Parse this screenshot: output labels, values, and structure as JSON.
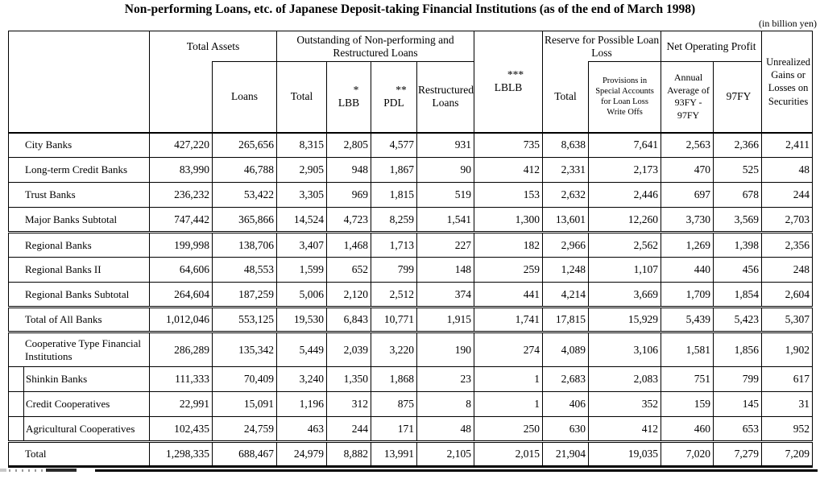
{
  "title": "Non-performing Loans, etc. of Japanese Deposit-taking Financial Institutions (as of the end of March 1998)",
  "unit_note": "(in billion yen)",
  "header": {
    "total_assets": "Total Assets",
    "loans": "Loans",
    "outstanding_lines": [
      "Outstanding of Non-performing and",
      "Restructured Loans"
    ],
    "npl_total": "Total",
    "lbb_sup": "*",
    "lbb": "LBB",
    "pdl_sup": "**",
    "pdl": "PDL",
    "restructured_lines": [
      "Restructured",
      "Loans"
    ],
    "lblb_sup": "***",
    "lblb": "LBLB",
    "reserve_lines": [
      "Reserve for Possible Loan",
      "Loss"
    ],
    "reserve_total": "Total",
    "provisions_lines": [
      "Provisions in",
      "Special Accounts",
      "for Loan Loss",
      "Write Offs"
    ],
    "annual_avg_lines": [
      "Annual",
      "Average of",
      "93FY -",
      "97FY"
    ],
    "fy97": "97FY",
    "unrealized_lines": [
      "Unrealized",
      "Gains or",
      "Losses on",
      "Securities"
    ]
  },
  "rows": [
    {
      "label": "City Banks",
      "rule": false,
      "indent": false,
      "tall": false,
      "values": [
        "427,220",
        "265,656",
        "8,315",
        "2,805",
        "4,577",
        "931",
        "735",
        "8,638",
        "7,641",
        "2,563",
        "2,366",
        "2,411"
      ]
    },
    {
      "label": "Long-term Credit Banks",
      "rule": false,
      "indent": false,
      "tall": false,
      "values": [
        "83,990",
        "46,788",
        "2,905",
        "948",
        "1,867",
        "90",
        "412",
        "2,331",
        "2,173",
        "470",
        "525",
        "48"
      ]
    },
    {
      "label": "Trust Banks",
      "rule": false,
      "indent": false,
      "tall": false,
      "values": [
        "236,232",
        "53,422",
        "3,305",
        "969",
        "1,815",
        "519",
        "153",
        "2,632",
        "2,446",
        "697",
        "678",
        "244"
      ]
    },
    {
      "label": "Major Banks Subtotal",
      "rule": false,
      "indent": false,
      "tall": false,
      "values": [
        "747,442",
        "365,866",
        "14,524",
        "4,723",
        "8,259",
        "1,541",
        "1,300",
        "13,601",
        "12,260",
        "3,730",
        "3,569",
        "2,703"
      ]
    },
    {
      "label": "Regional Banks",
      "rule": true,
      "indent": false,
      "tall": false,
      "values": [
        "199,998",
        "138,706",
        "3,407",
        "1,468",
        "1,713",
        "227",
        "182",
        "2,966",
        "2,562",
        "1,269",
        "1,398",
        "2,356"
      ]
    },
    {
      "label": "Regional Banks II",
      "rule": false,
      "indent": false,
      "tall": false,
      "values": [
        "64,606",
        "48,553",
        "1,599",
        "652",
        "799",
        "148",
        "259",
        "1,248",
        "1,107",
        "440",
        "456",
        "248"
      ]
    },
    {
      "label": "Regional Banks Subtotal",
      "rule": false,
      "indent": false,
      "tall": false,
      "values": [
        "264,604",
        "187,259",
        "5,006",
        "2,120",
        "2,512",
        "374",
        "441",
        "4,214",
        "3,669",
        "1,709",
        "1,854",
        "2,604"
      ]
    },
    {
      "label": "Total of All Banks",
      "rule": true,
      "indent": false,
      "tall": false,
      "values": [
        "1,012,046",
        "553,125",
        "19,530",
        "6,843",
        "10,771",
        "1,915",
        "1,741",
        "17,815",
        "15,929",
        "5,439",
        "5,423",
        "5,307"
      ]
    },
    {
      "label": "Cooperative Type Financial Institutions",
      "rule": true,
      "indent": false,
      "tall": true,
      "values": [
        "286,289",
        "135,342",
        "5,449",
        "2,039",
        "3,220",
        "190",
        "274",
        "4,089",
        "3,106",
        "1,581",
        "1,856",
        "1,902"
      ]
    },
    {
      "label": "Shinkin Banks",
      "rule": false,
      "indent": true,
      "tall": false,
      "values": [
        "111,333",
        "70,409",
        "3,240",
        "1,350",
        "1,868",
        "23",
        "1",
        "2,683",
        "2,083",
        "751",
        "799",
        "617"
      ]
    },
    {
      "label": "Credit Cooperatives",
      "rule": false,
      "indent": true,
      "tall": false,
      "values": [
        "22,991",
        "15,091",
        "1,196",
        "312",
        "875",
        "8",
        "1",
        "406",
        "352",
        "159",
        "145",
        "31"
      ]
    },
    {
      "label": "Agricultural Cooperatives",
      "rule": false,
      "indent": true,
      "tall": false,
      "values": [
        "102,435",
        "24,759",
        "463",
        "244",
        "171",
        "48",
        "250",
        "630",
        "412",
        "460",
        "653",
        "952"
      ]
    },
    {
      "label": "Total",
      "rule": true,
      "indent": false,
      "tall": false,
      "values": [
        "1,298,335",
        "688,467",
        "24,979",
        "8,882",
        "13,991",
        "2,105",
        "2,015",
        "21,904",
        "19,035",
        "7,020",
        "7,279",
        "7,209"
      ]
    }
  ]
}
